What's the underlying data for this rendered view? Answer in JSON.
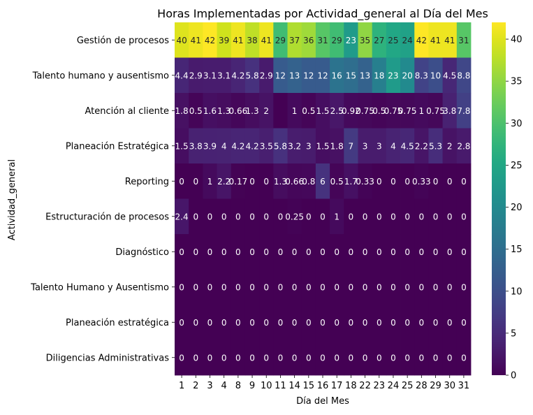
{
  "chart_data": {
    "type": "heatmap",
    "title": "Horas Implementadas por Actividad_general al Día del Mes",
    "xlabel": "Día del Mes",
    "ylabel": "Actividad_general",
    "x": [
      "1",
      "2",
      "3",
      "4",
      "8",
      "9",
      "10",
      "11",
      "14",
      "15",
      "16",
      "17",
      "18",
      "22",
      "23",
      "24",
      "25",
      "28",
      "29",
      "30",
      "31"
    ],
    "y": [
      "Gestión de procesos",
      "Talento humano y ausentismo",
      "Atención al cliente",
      "Planeación Estratégica",
      "Reporting",
      "Estructuración de procesos",
      "Diagnóstico",
      "Talento Humano y Ausentismo",
      "Planeación estratégica",
      "Diligencias Administrativas"
    ],
    "values": [
      [
        40,
        41,
        42,
        39,
        41,
        38,
        41,
        29,
        37,
        36,
        31,
        29,
        23,
        35,
        27,
        25,
        24,
        42,
        41,
        41,
        31
      ],
      [
        4.4,
        2.9,
        3.1,
        3.1,
        4.2,
        5.8,
        2.9,
        12,
        13,
        12,
        12,
        16,
        15,
        13,
        18,
        23,
        20,
        8.3,
        10,
        4.5,
        8.8
      ],
      [
        1.8,
        0.5,
        1.6,
        1.3,
        0.66,
        1.3,
        2,
        0,
        1,
        0.5,
        1.5,
        2.5,
        0.92,
        0.75,
        0.5,
        0.75,
        0.75,
        1,
        0.75,
        3.8,
        7.8
      ],
      [
        1.5,
        3.8,
        3.9,
        4,
        4.2,
        4.2,
        3.5,
        5.8,
        3.2,
        3,
        1.5,
        1.8,
        7,
        3,
        3,
        4,
        4.5,
        2.2,
        5.3,
        2,
        2.8
      ],
      [
        0,
        0,
        1,
        2.2,
        0.17,
        0,
        0,
        1.3,
        0.66,
        0.8,
        6,
        0.5,
        1.7,
        0.33,
        0,
        0,
        0,
        0.33,
        0,
        0,
        0
      ],
      [
        2.4,
        0,
        0,
        0,
        0,
        0,
        0,
        0,
        0.25,
        0,
        0,
        1,
        0,
        0,
        0,
        0,
        0,
        0,
        0,
        0,
        0
      ],
      [
        0,
        0,
        0,
        0,
        0,
        0,
        0,
        0,
        0,
        0,
        0,
        0,
        0,
        0,
        0,
        0,
        0,
        0,
        0,
        0,
        0
      ],
      [
        0,
        0,
        0,
        0,
        0,
        0,
        0,
        0,
        0,
        0,
        0,
        0,
        0,
        0,
        0,
        0,
        0,
        0,
        0,
        0,
        0
      ],
      [
        0,
        0,
        0,
        0,
        0,
        0,
        0,
        0,
        0,
        0,
        0,
        0,
        0,
        0,
        0,
        0,
        0,
        0,
        0,
        0,
        0
      ],
      [
        0,
        0,
        0,
        0,
        0,
        0,
        0,
        0,
        0,
        0,
        0,
        0,
        0,
        0,
        0,
        0,
        0,
        0,
        0,
        0,
        0
      ]
    ],
    "annotation_text": [
      [
        "40",
        "41",
        "42",
        "39",
        "41",
        "38",
        "41",
        "29",
        "37",
        "36",
        "31",
        "29",
        "23",
        "35",
        "27",
        "25",
        "24",
        "42",
        "41",
        "41",
        "31"
      ],
      [
        "4.4",
        "2.9",
        "3.1",
        "3.1",
        "4.2",
        "5.8",
        "2.9",
        "12",
        "13",
        "12",
        "12",
        "16",
        "15",
        "13",
        "18",
        "23",
        "20",
        "8.3",
        "10",
        "4.5",
        "8.8"
      ],
      [
        "1.8",
        "0.5",
        "1.6",
        "1.3",
        "0.66",
        "1.3",
        "2",
        "",
        "1",
        "0.5",
        "1.5",
        "2.5",
        "0.92",
        "0.75",
        "0.5",
        "0.75",
        "0.75",
        "1",
        "0.75",
        "3.8",
        "7.8"
      ],
      [
        "1.5",
        "3.8",
        "3.9",
        "4",
        "4.2",
        "4.2",
        "3.5",
        "5.8",
        "3.2",
        "3",
        "1.5",
        "1.8",
        "7",
        "3",
        "3",
        "4",
        "4.5",
        "2.2",
        "5.3",
        "2",
        "2.8"
      ],
      [
        "0",
        "0",
        "1",
        "2.2",
        "0.17",
        "0",
        "0",
        "1.3",
        "0.66",
        "0.8",
        "6",
        "0.5",
        "1.7",
        "0.33",
        "0",
        "0",
        "0",
        "0.33",
        "0",
        "0",
        "0"
      ],
      [
        "2.4",
        "0",
        "0",
        "0",
        "0",
        "0",
        "0",
        "0",
        "0.25",
        "0",
        "0",
        "1",
        "0",
        "0",
        "0",
        "0",
        "0",
        "0",
        "0",
        "0",
        "0"
      ],
      [
        "0",
        "0",
        "0",
        "0",
        "0",
        "0",
        "0",
        "0",
        "0",
        "0",
        "0",
        "0",
        "0",
        "0",
        "0",
        "0",
        "0",
        "0",
        "0",
        "0",
        "0"
      ],
      [
        "0",
        "0",
        "0",
        "0",
        "0",
        "0",
        "0",
        "0",
        "0",
        "0",
        "0",
        "0",
        "0",
        "0",
        "0",
        "0",
        "0",
        "0",
        "0",
        "0",
        "0"
      ],
      [
        "0",
        "0",
        "0",
        "0",
        "0",
        "0",
        "0",
        "0",
        "0",
        "0",
        "0",
        "0",
        "0",
        "0",
        "0",
        "0",
        "0",
        "0",
        "0",
        "0",
        "0"
      ],
      [
        "0",
        "0",
        "0",
        "0",
        "0",
        "0",
        "0",
        "0",
        "0",
        "0",
        "0",
        "0",
        "0",
        "0",
        "0",
        "0",
        "0",
        "0",
        "0",
        "0",
        "0"
      ]
    ],
    "colormap": "viridis",
    "vmin": 0,
    "vmax": 42,
    "colorbar_ticks": [
      0,
      5,
      10,
      15,
      20,
      25,
      30,
      35,
      40
    ],
    "text_colors": {
      "dark_cell": "#ffffff",
      "light_cell": "#262626"
    },
    "axis_color": "#000000"
  }
}
